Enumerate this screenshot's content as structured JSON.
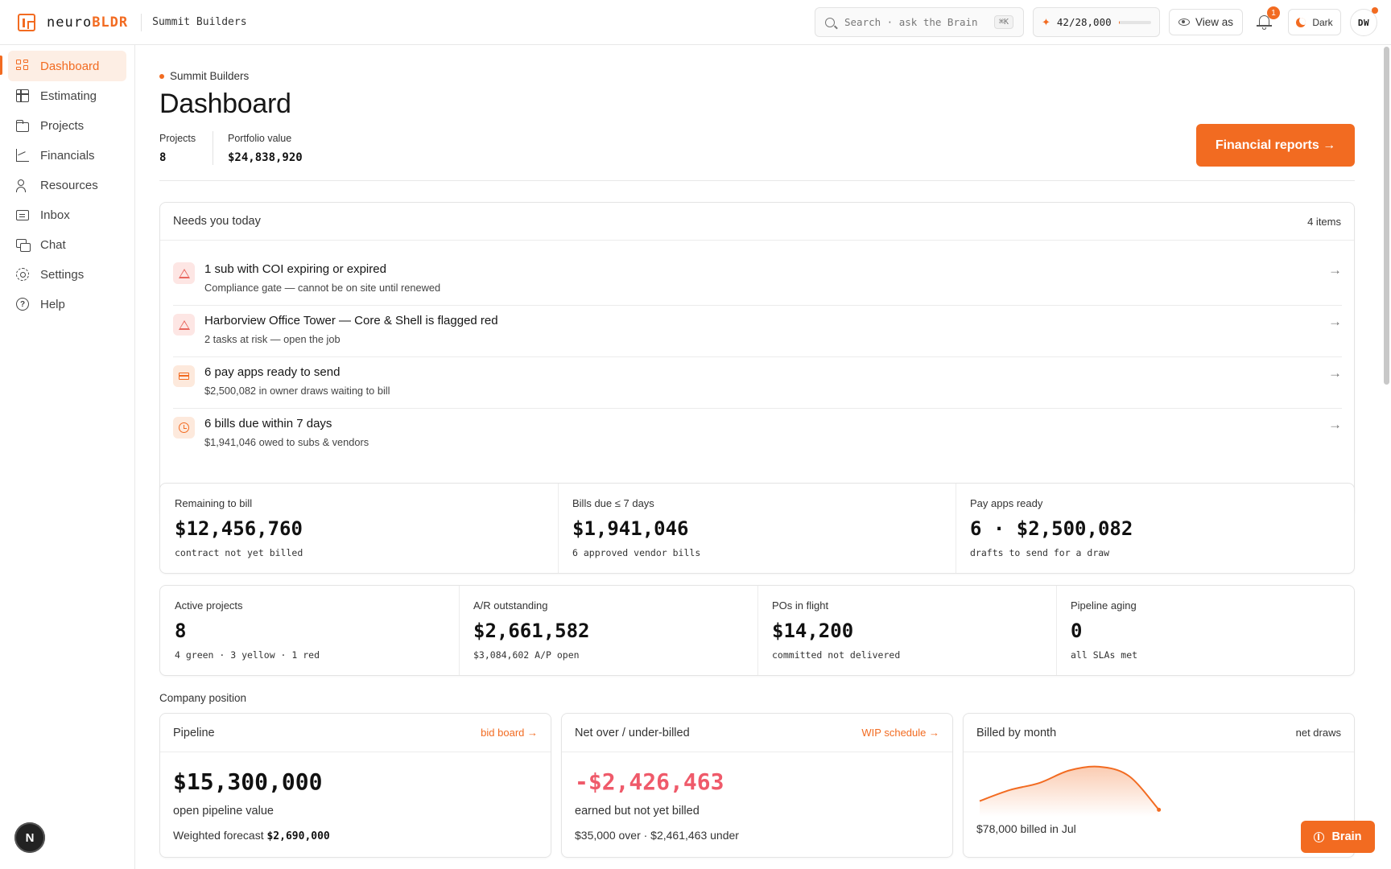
{
  "brand": {
    "name_part1": "neuro",
    "name_part2": "BLDR",
    "org": "Summit Builders"
  },
  "topbar": {
    "search_placeholder": "Search · ask the Brain",
    "search_shortcut": "⌘K",
    "usage_text": "42/28,000",
    "usage_fraction": 0.0015,
    "view_as": "View as",
    "notifications_count": "1",
    "theme_label": "Dark",
    "avatar_initials": "DW"
  },
  "sidebar": {
    "items": [
      {
        "label": "Dashboard",
        "icon": "dashboard-icon",
        "active": true
      },
      {
        "label": "Estimating",
        "icon": "estimating-icon"
      },
      {
        "label": "Projects",
        "icon": "folder-icon"
      },
      {
        "label": "Financials",
        "icon": "chart-icon"
      },
      {
        "label": "Resources",
        "icon": "users-icon"
      },
      {
        "label": "Inbox",
        "icon": "inbox-icon"
      },
      {
        "label": "Chat",
        "icon": "chat-icon"
      },
      {
        "label": "Settings",
        "icon": "gear-icon"
      },
      {
        "label": "Help",
        "icon": "help-icon"
      }
    ],
    "footer_badge": "N"
  },
  "header": {
    "breadcrumb": "Summit Builders",
    "title": "Dashboard",
    "projects_label": "Projects",
    "projects_value": "8",
    "portfolio_label": "Portfolio value",
    "portfolio_value": "$24,838,920",
    "cta": "Financial reports →"
  },
  "needs": {
    "title": "Needs you today",
    "count": "4 items",
    "items": [
      {
        "title": "1 sub with COI expiring or expired",
        "sub": "Compliance gate — cannot be on site until renewed",
        "icon": "warning-icon"
      },
      {
        "title": "Harborview Office Tower — Core & Shell is flagged red",
        "sub": "2 tasks at risk — open the job",
        "icon": "warning-icon"
      },
      {
        "title": "6 pay apps ready to send",
        "sub": "$2,500,082 in owner draws waiting to bill",
        "icon": "credit-card-icon"
      },
      {
        "title": "6 bills due within 7 days",
        "sub": "$1,941,046 owed to subs & vendors",
        "icon": "clock-icon"
      }
    ],
    "arrow": "→"
  },
  "stats_row1": [
    {
      "label": "Remaining to bill",
      "value": "$12,456,760",
      "sub": "contract not yet billed"
    },
    {
      "label": "Bills due ≤ 7 days",
      "value": "$1,941,046",
      "sub": "6 approved vendor bills"
    },
    {
      "label": "Pay apps ready",
      "value": "6 · $2,500,082",
      "sub": "drafts to send for a draw"
    }
  ],
  "stats_row2": [
    {
      "label": "Active projects",
      "value": "8",
      "sub": "4 green · 3 yellow · 1 red"
    },
    {
      "label": "A/R outstanding",
      "value": "$2,661,582",
      "sub": "$3,084,602 A/P open"
    },
    {
      "label": "POs in flight",
      "value": "$14,200",
      "sub": "committed not delivered"
    },
    {
      "label": "Pipeline aging",
      "value": "0",
      "sub": "all SLAs met"
    }
  ],
  "company": {
    "section_label": "Company position",
    "pipeline": {
      "title": "Pipeline",
      "link": "bid board →",
      "value": "$15,300,000",
      "sub": "open pipeline value",
      "forecast_label": "Weighted forecast",
      "forecast_value": "$2,690,000"
    },
    "overunder": {
      "title": "Net over / under-billed",
      "link": "WIP schedule →",
      "value": "-$2,426,463",
      "sub": "earned but not yet billed",
      "foot": "$35,000 over · $2,461,463 under"
    },
    "billed": {
      "title": "Billed by month",
      "right": "net draws",
      "foot": "$78,000 billed in Jul"
    }
  },
  "chart_data": {
    "type": "area",
    "title": "Billed by month",
    "x": [
      "",
      "",
      "",
      "",
      "",
      "",
      ""
    ],
    "values": [
      40,
      75,
      98,
      138,
      150,
      120,
      12
    ],
    "ylim": [
      0,
      160
    ],
    "color": "#f26b21"
  },
  "brain_button": "Brain",
  "colors": {
    "accent": "#f26b21",
    "negative": "#ef5a6a",
    "warning_bg": "#fde6e4"
  }
}
